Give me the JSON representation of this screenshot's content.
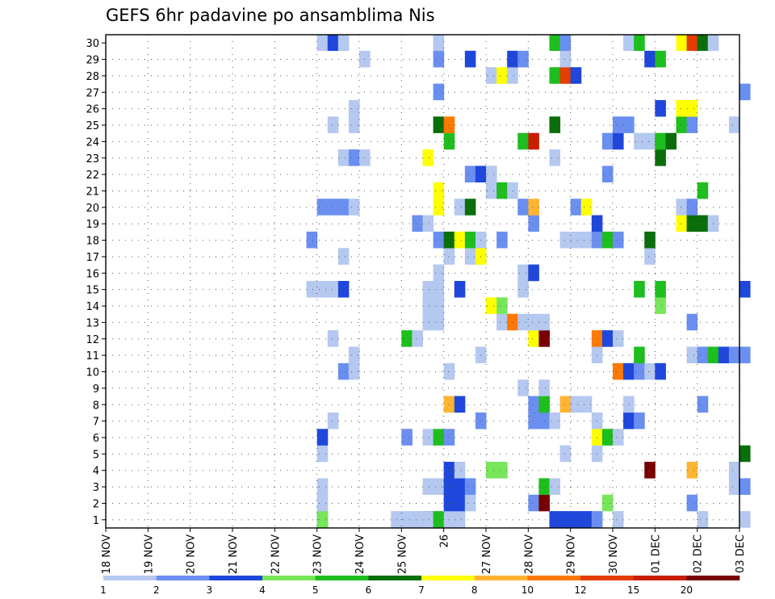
{
  "chart_data": {
    "type": "heatmap",
    "title": "GEFS 6hr padavine po ansamblima Nis",
    "xlabel": "",
    "ylabel": "",
    "x_tick_labels": [
      "18 NOV",
      "19 NOV",
      "20 NOV",
      "21 NOV",
      "22 NOV",
      "23 NOV",
      "24 NOV",
      "25 NOV",
      "26",
      "27 NOV",
      "28 NOV",
      "29 NOV",
      "30 NOV",
      "01 DEC",
      "02 DEC",
      "03 DEC"
    ],
    "y_tick_labels": [
      "1",
      "2",
      "3",
      "4",
      "5",
      "6",
      "7",
      "8",
      "9",
      "10",
      "11",
      "12",
      "13",
      "14",
      "15",
      "16",
      "17",
      "18",
      "19",
      "20",
      "21",
      "22",
      "23",
      "24",
      "25",
      "26",
      "27",
      "28",
      "29",
      "30"
    ],
    "xlim_days": [
      0,
      15
    ],
    "ylim": [
      0,
      30
    ],
    "grid": true,
    "legend_placement": "bottom",
    "legend": {
      "labels": [
        "1",
        "2",
        "3",
        "4",
        "5",
        "6",
        "7",
        "8",
        "10",
        "12",
        "15",
        "20"
      ],
      "colors": [
        "#b4c8f0",
        "#6b8ff0",
        "#1f47dc",
        "#78e65a",
        "#1ebe1e",
        "#0a6e0a",
        "#ffff00",
        "#ffb432",
        "#ff7800",
        "#e63c00",
        "#c81e00",
        "#780000"
      ]
    },
    "cell_width_hours": 6,
    "series": [
      {
        "member": 1,
        "cells": [
          [
            23.0,
            3
          ],
          [
            23.0,
            4
          ],
          [
            24.75,
            1
          ],
          [
            25.0,
            1
          ],
          [
            25.25,
            1
          ],
          [
            25.5,
            3
          ],
          [
            25.5,
            1
          ],
          [
            25.75,
            5
          ],
          [
            26.0,
            1
          ],
          [
            26.25,
            1
          ],
          [
            28.5,
            3
          ],
          [
            28.75,
            3
          ],
          [
            29.0,
            3
          ],
          [
            29.25,
            3
          ],
          [
            29.5,
            2
          ],
          [
            30.0,
            1
          ],
          [
            32.0,
            1
          ],
          [
            33.0,
            1
          ]
        ]
      },
      {
        "member": 2,
        "cells": [
          [
            23.0,
            1
          ],
          [
            26.0,
            3
          ],
          [
            26.25,
            3
          ],
          [
            26.5,
            1
          ],
          [
            28.0,
            2
          ],
          [
            28.25,
            20
          ],
          [
            29.75,
            4
          ],
          [
            31.75,
            2
          ]
        ]
      },
      {
        "member": 3,
        "cells": [
          [
            23.0,
            1
          ],
          [
            25.5,
            1
          ],
          [
            25.75,
            1
          ],
          [
            26.0,
            3
          ],
          [
            26.25,
            3
          ],
          [
            26.5,
            2
          ],
          [
            28.25,
            5
          ],
          [
            28.5,
            1
          ],
          [
            32.75,
            1
          ],
          [
            33.0,
            2
          ]
        ]
      },
      {
        "member": 4,
        "cells": [
          [
            26.0,
            3
          ],
          [
            26.25,
            1
          ],
          [
            27.0,
            4
          ],
          [
            27.25,
            4
          ],
          [
            30.75,
            20
          ],
          [
            31.75,
            8
          ],
          [
            32.75,
            1
          ]
        ]
      },
      {
        "member": 5,
        "cells": [
          [
            23.0,
            1
          ],
          [
            28.75,
            1
          ],
          [
            29.5,
            1
          ],
          [
            33.0,
            6
          ]
        ]
      },
      {
        "member": 6,
        "cells": [
          [
            23.0,
            3
          ],
          [
            25.0,
            2
          ],
          [
            25.5,
            1
          ],
          [
            25.75,
            5
          ],
          [
            26.0,
            2
          ],
          [
            29.5,
            7
          ],
          [
            29.75,
            5
          ],
          [
            30.0,
            1
          ]
        ]
      },
      {
        "member": 7,
        "cells": [
          [
            23.25,
            1
          ],
          [
            26.75,
            2
          ],
          [
            28.0,
            2
          ],
          [
            28.25,
            2
          ],
          [
            28.5,
            1
          ],
          [
            29.5,
            1
          ],
          [
            30.25,
            3
          ],
          [
            30.5,
            2
          ]
        ]
      },
      {
        "member": 8,
        "cells": [
          [
            26.0,
            8
          ],
          [
            26.25,
            3
          ],
          [
            28.0,
            2
          ],
          [
            28.25,
            5
          ],
          [
            28.75,
            8
          ],
          [
            29.0,
            1
          ],
          [
            29.25,
            1
          ],
          [
            30.25,
            1
          ],
          [
            32.0,
            2
          ]
        ]
      },
      {
        "member": 9,
        "cells": [
          [
            27.75,
            1
          ],
          [
            28.25,
            1
          ]
        ]
      },
      {
        "member": 10,
        "cells": [
          [
            23.5,
            2
          ],
          [
            23.75,
            1
          ],
          [
            26.0,
            1
          ],
          [
            30.0,
            10
          ],
          [
            30.25,
            3
          ],
          [
            30.5,
            2
          ],
          [
            30.75,
            1
          ],
          [
            31.0,
            3
          ]
        ]
      },
      {
        "member": 11,
        "cells": [
          [
            23.75,
            1
          ],
          [
            26.75,
            1
          ],
          [
            29.5,
            1
          ],
          [
            30.5,
            5
          ],
          [
            31.75,
            1
          ],
          [
            32.0,
            2
          ],
          [
            32.25,
            5
          ],
          [
            32.5,
            3
          ],
          [
            32.75,
            2
          ],
          [
            33.0,
            2
          ]
        ]
      },
      {
        "member": 12,
        "cells": [
          [
            23.25,
            1
          ],
          [
            25.0,
            5
          ],
          [
            25.25,
            1
          ],
          [
            28.0,
            7
          ],
          [
            28.25,
            20
          ],
          [
            29.5,
            10
          ],
          [
            29.75,
            3
          ],
          [
            30.0,
            1
          ]
        ]
      },
      {
        "member": 13,
        "cells": [
          [
            25.5,
            1
          ],
          [
            25.75,
            1
          ],
          [
            27.25,
            1
          ],
          [
            27.5,
            10
          ],
          [
            27.75,
            1
          ],
          [
            28.0,
            1
          ],
          [
            28.25,
            1
          ],
          [
            31.75,
            2
          ]
        ]
      },
      {
        "member": 14,
        "cells": [
          [
            25.5,
            1
          ],
          [
            25.75,
            1
          ],
          [
            27.0,
            7
          ],
          [
            27.25,
            4
          ],
          [
            31.0,
            4
          ]
        ]
      },
      {
        "member": 15,
        "cells": [
          [
            22.75,
            1
          ],
          [
            23.0,
            1
          ],
          [
            23.25,
            1
          ],
          [
            23.5,
            3
          ],
          [
            25.5,
            1
          ],
          [
            25.75,
            1
          ],
          [
            26.25,
            3
          ],
          [
            27.75,
            1
          ],
          [
            30.5,
            5
          ],
          [
            31.0,
            5
          ],
          [
            33.0,
            3
          ]
        ]
      },
      {
        "member": 16,
        "cells": [
          [
            25.75,
            1
          ],
          [
            27.75,
            1
          ],
          [
            28.0,
            3
          ]
        ]
      },
      {
        "member": 17,
        "cells": [
          [
            23.5,
            1
          ],
          [
            26.0,
            1
          ],
          [
            26.5,
            1
          ],
          [
            26.75,
            7
          ],
          [
            30.75,
            1
          ]
        ]
      },
      {
        "member": 18,
        "cells": [
          [
            22.75,
            2
          ],
          [
            25.75,
            2
          ],
          [
            26.0,
            6
          ],
          [
            26.25,
            7
          ],
          [
            26.5,
            5
          ],
          [
            26.75,
            1
          ],
          [
            27.25,
            2
          ],
          [
            28.75,
            1
          ],
          [
            29.0,
            1
          ],
          [
            29.25,
            1
          ],
          [
            29.5,
            2
          ],
          [
            29.75,
            5
          ],
          [
            30.0,
            2
          ],
          [
            30.75,
            6
          ]
        ]
      },
      {
        "member": 19,
        "cells": [
          [
            25.25,
            2
          ],
          [
            25.5,
            1
          ],
          [
            28.0,
            2
          ],
          [
            29.5,
            3
          ],
          [
            31.5,
            7
          ],
          [
            31.75,
            6
          ],
          [
            32.0,
            6
          ],
          [
            32.25,
            1
          ]
        ]
      },
      {
        "member": 20,
        "cells": [
          [
            23.0,
            2
          ],
          [
            23.25,
            2
          ],
          [
            23.5,
            2
          ],
          [
            23.75,
            1
          ],
          [
            25.75,
            7
          ],
          [
            26.25,
            1
          ],
          [
            26.5,
            6
          ],
          [
            27.75,
            2
          ],
          [
            28.0,
            8
          ],
          [
            29.0,
            2
          ],
          [
            29.25,
            7
          ],
          [
            31.5,
            1
          ],
          [
            31.75,
            2
          ]
        ]
      },
      {
        "member": 21,
        "cells": [
          [
            25.75,
            7
          ],
          [
            27.0,
            1
          ],
          [
            27.25,
            5
          ],
          [
            27.5,
            1
          ],
          [
            32.0,
            5
          ]
        ]
      },
      {
        "member": 22,
        "cells": [
          [
            26.5,
            2
          ],
          [
            26.75,
            3
          ],
          [
            27.0,
            1
          ],
          [
            29.75,
            2
          ]
        ]
      },
      {
        "member": 23,
        "cells": [
          [
            23.5,
            1
          ],
          [
            23.75,
            2
          ],
          [
            24.0,
            1
          ],
          [
            25.5,
            7
          ],
          [
            28.5,
            1
          ],
          [
            31.0,
            6
          ]
        ]
      },
      {
        "member": 24,
        "cells": [
          [
            26.0,
            5
          ],
          [
            27.75,
            5
          ],
          [
            28.0,
            15
          ],
          [
            29.75,
            2
          ],
          [
            30.0,
            3
          ],
          [
            30.5,
            1
          ],
          [
            30.75,
            1
          ],
          [
            31.0,
            5
          ],
          [
            31.25,
            6
          ]
        ]
      },
      {
        "member": 25,
        "cells": [
          [
            23.25,
            1
          ],
          [
            23.75,
            1
          ],
          [
            25.75,
            6
          ],
          [
            26.0,
            10
          ],
          [
            28.5,
            6
          ],
          [
            30.0,
            2
          ],
          [
            30.25,
            2
          ],
          [
            31.5,
            5
          ],
          [
            31.75,
            2
          ],
          [
            32.75,
            1
          ]
        ]
      },
      {
        "member": 26,
        "cells": [
          [
            23.75,
            1
          ],
          [
            31.0,
            3
          ],
          [
            31.5,
            7
          ],
          [
            31.75,
            7
          ]
        ]
      },
      {
        "member": 27,
        "cells": [
          [
            25.75,
            2
          ],
          [
            33.0,
            2
          ]
        ]
      },
      {
        "member": 28,
        "cells": [
          [
            27.0,
            1
          ],
          [
            27.25,
            7
          ],
          [
            27.5,
            1
          ],
          [
            28.5,
            5
          ],
          [
            28.75,
            12
          ],
          [
            29.0,
            3
          ]
        ]
      },
      {
        "member": 29,
        "cells": [
          [
            24.0,
            1
          ],
          [
            25.75,
            2
          ],
          [
            26.5,
            3
          ],
          [
            27.5,
            3
          ],
          [
            27.75,
            2
          ],
          [
            28.75,
            1
          ],
          [
            30.75,
            3
          ],
          [
            31.0,
            5
          ]
        ]
      },
      {
        "member": 30,
        "cells": [
          [
            23.0,
            1
          ],
          [
            23.25,
            3
          ],
          [
            23.5,
            1
          ],
          [
            25.75,
            1
          ],
          [
            28.5,
            5
          ],
          [
            28.75,
            2
          ],
          [
            30.25,
            1
          ],
          [
            30.5,
            5
          ],
          [
            31.5,
            7
          ],
          [
            31.75,
            12
          ],
          [
            32.0,
            6
          ],
          [
            32.25,
            1
          ]
        ]
      }
    ]
  }
}
